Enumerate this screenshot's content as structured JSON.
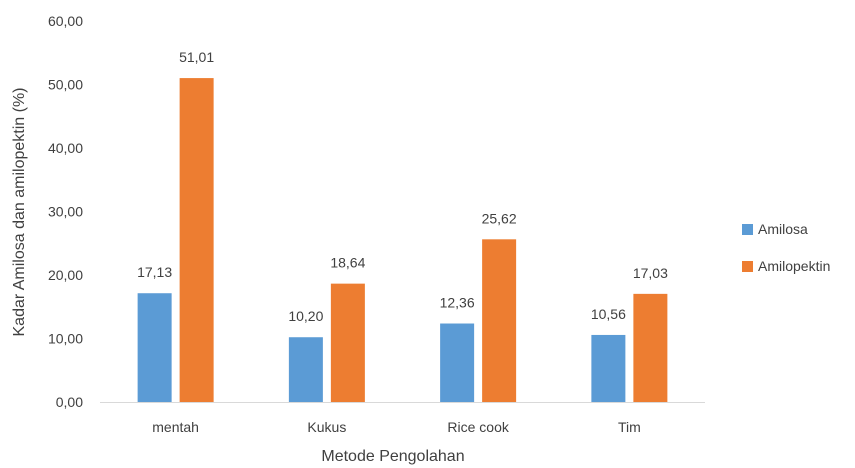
{
  "chart_data": {
    "type": "bar",
    "title": "",
    "xlabel": "Metode Pengolahan",
    "ylabel": "Kadar Amilosa dan amilopektin (%)",
    "ylim": [
      0,
      60
    ],
    "y_ticks": [
      {
        "value": 0,
        "label": "0,00"
      },
      {
        "value": 10,
        "label": "10,00"
      },
      {
        "value": 20,
        "label": "20,00"
      },
      {
        "value": 30,
        "label": "30,00"
      },
      {
        "value": 40,
        "label": "40,00"
      },
      {
        "value": 50,
        "label": "50,00"
      },
      {
        "value": 60,
        "label": "60,00"
      }
    ],
    "categories": [
      "mentah",
      "Kukus",
      "Rice cook",
      "Tim"
    ],
    "series": [
      {
        "name": "Amilosa",
        "color": "#5B9BD5",
        "values": [
          17.13,
          10.2,
          12.36,
          10.56
        ],
        "labels": [
          "17,13",
          "10,20",
          "12,36",
          "10,56"
        ]
      },
      {
        "name": "Amilopektin",
        "color": "#ED7D31",
        "values": [
          51.01,
          18.64,
          25.62,
          17.03
        ],
        "labels": [
          "51,01",
          "18,64",
          "25,62",
          "17,03"
        ]
      }
    ],
    "grid": false,
    "legend_position": "right"
  }
}
